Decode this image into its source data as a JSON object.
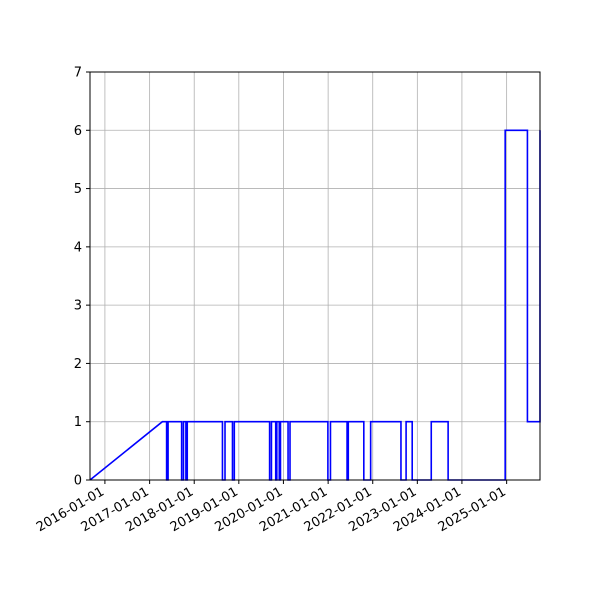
{
  "chart_data": {
    "type": "line",
    "title": "",
    "xlabel": "",
    "ylabel": "",
    "x_axis_type": "date",
    "xlim": [
      "2015-09-01",
      "2025-10-01"
    ],
    "ylim": [
      0,
      7
    ],
    "grid": true,
    "line_color": "#0000ff",
    "x_ticks": [
      "2016-01-01",
      "2017-01-01",
      "2018-01-01",
      "2019-01-01",
      "2020-01-01",
      "2021-01-01",
      "2022-01-01",
      "2023-01-01",
      "2024-01-01",
      "2025-01-01"
    ],
    "y_ticks": [
      0,
      1,
      2,
      3,
      4,
      5,
      6,
      7
    ],
    "series": [
      {
        "points": [
          [
            "2015-09-01",
            0
          ],
          [
            "2017-04-15",
            1
          ],
          [
            "2017-05-20",
            1
          ],
          [
            "2017-05-20",
            0
          ],
          [
            "2017-06-01",
            0
          ],
          [
            "2017-06-01",
            1
          ],
          [
            "2017-09-20",
            1
          ],
          [
            "2017-09-20",
            0
          ],
          [
            "2017-10-05",
            0
          ],
          [
            "2017-10-05",
            1
          ],
          [
            "2017-10-25",
            1
          ],
          [
            "2017-10-25",
            0
          ],
          [
            "2017-11-05",
            0
          ],
          [
            "2017-11-05",
            1
          ],
          [
            "2018-08-20",
            1
          ],
          [
            "2018-08-20",
            0
          ],
          [
            "2018-09-10",
            0
          ],
          [
            "2018-09-10",
            1
          ],
          [
            "2018-11-10",
            1
          ],
          [
            "2018-11-10",
            0
          ],
          [
            "2018-11-25",
            0
          ],
          [
            "2018-11-25",
            1
          ],
          [
            "2019-09-10",
            1
          ],
          [
            "2019-09-10",
            0
          ],
          [
            "2019-09-25",
            0
          ],
          [
            "2019-09-25",
            1
          ],
          [
            "2019-10-30",
            1
          ],
          [
            "2019-10-30",
            0
          ],
          [
            "2019-11-08",
            0
          ],
          [
            "2019-11-08",
            1
          ],
          [
            "2019-11-28",
            1
          ],
          [
            "2019-11-28",
            0
          ],
          [
            "2019-12-08",
            0
          ],
          [
            "2019-12-08",
            1
          ],
          [
            "2020-02-08",
            1
          ],
          [
            "2020-02-08",
            0
          ],
          [
            "2020-02-24",
            0
          ],
          [
            "2020-02-24",
            1
          ],
          [
            "2020-12-30",
            1
          ],
          [
            "2020-12-30",
            0
          ],
          [
            "2021-01-20",
            0
          ],
          [
            "2021-01-20",
            1
          ],
          [
            "2021-06-05",
            1
          ],
          [
            "2021-06-05",
            0
          ],
          [
            "2021-06-15",
            0
          ],
          [
            "2021-06-15",
            1
          ],
          [
            "2021-10-20",
            1
          ],
          [
            "2021-10-20",
            0
          ],
          [
            "2021-12-15",
            0
          ],
          [
            "2021-12-15",
            1
          ],
          [
            "2022-08-20",
            1
          ],
          [
            "2022-08-20",
            0
          ],
          [
            "2022-10-01",
            0
          ],
          [
            "2022-10-01",
            1
          ],
          [
            "2022-11-20",
            1
          ],
          [
            "2022-11-20",
            0
          ],
          [
            "2023-04-25",
            0
          ],
          [
            "2023-04-25",
            1
          ],
          [
            "2023-09-10",
            1
          ],
          [
            "2023-09-10",
            0
          ],
          [
            "2024-12-20",
            0
          ],
          [
            "2024-12-20",
            6
          ],
          [
            "2025-06-20",
            6
          ],
          [
            "2025-06-20",
            1
          ],
          [
            "2025-10-05",
            1
          ],
          [
            "2025-10-05",
            6
          ],
          [
            "2025-10-01",
            6
          ]
        ]
      }
    ]
  }
}
